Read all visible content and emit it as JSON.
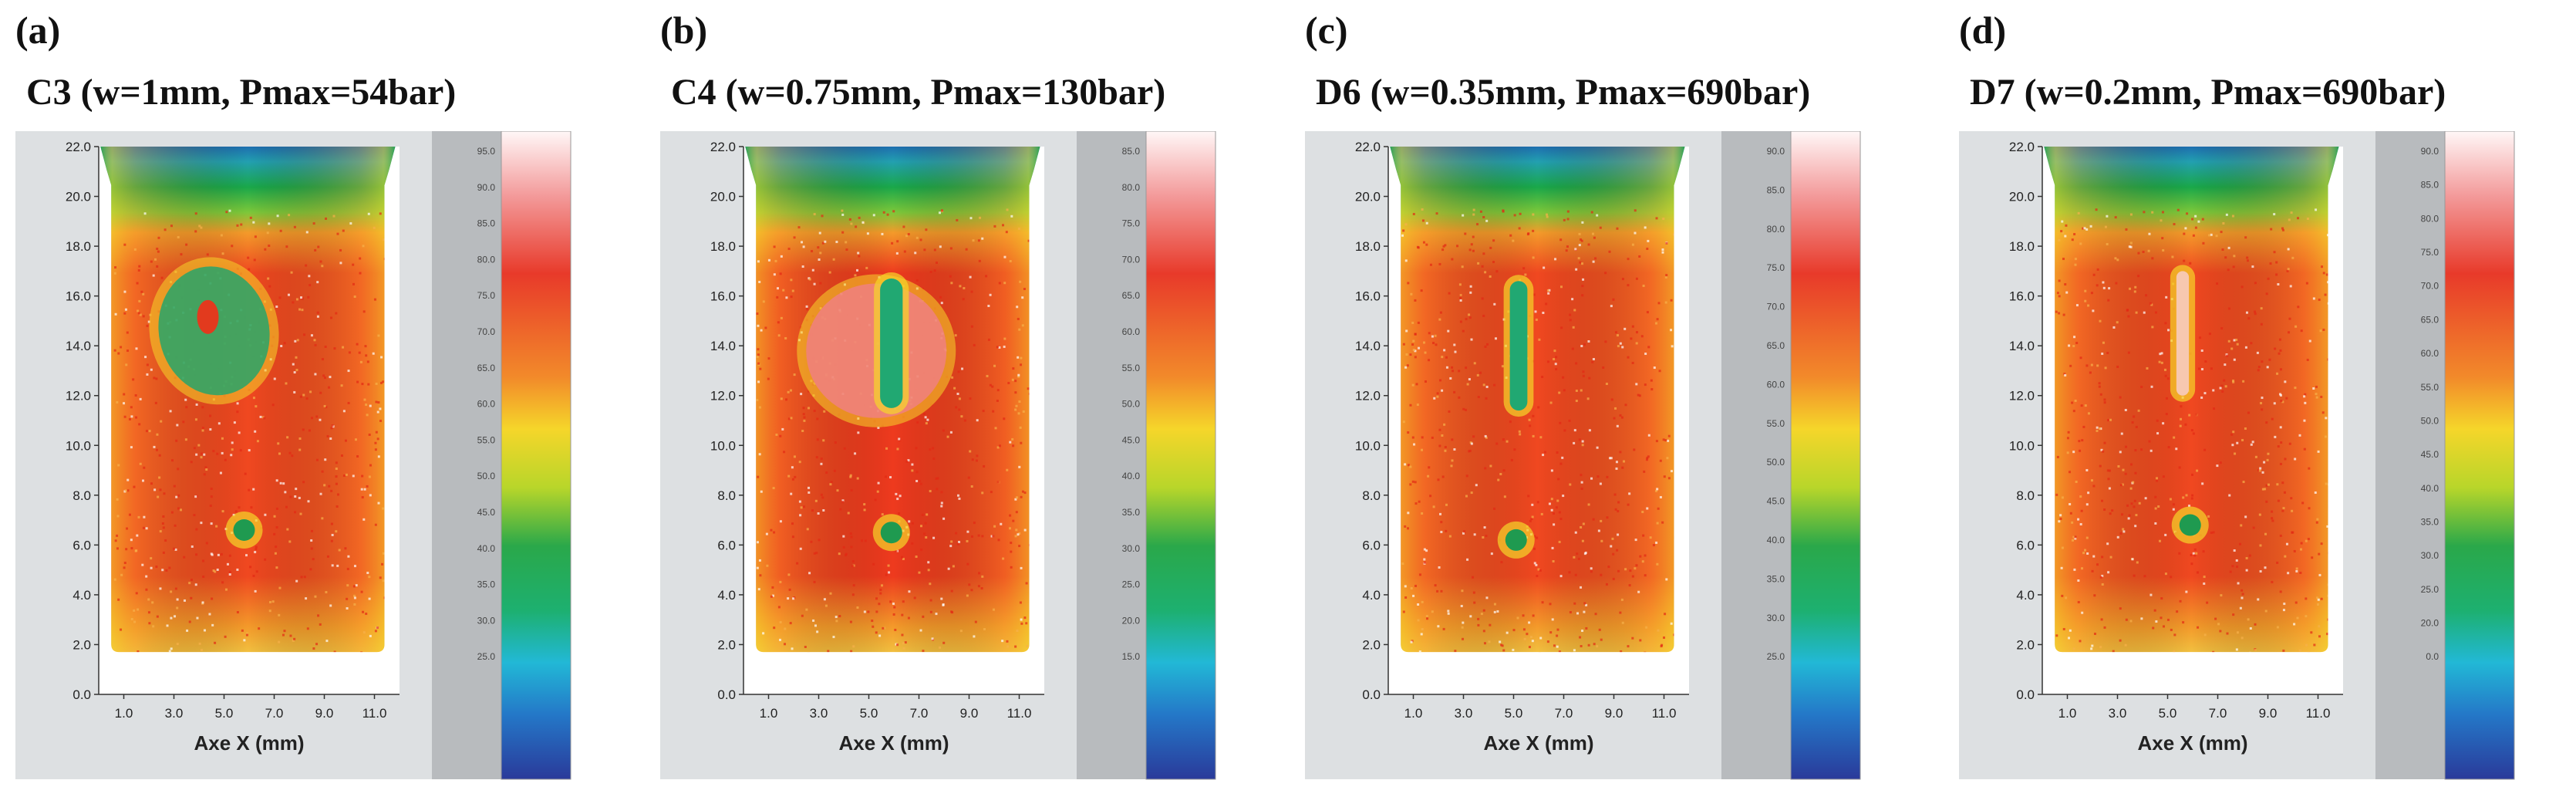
{
  "figure": {
    "panels": [
      {
        "letter": "(a)",
        "title": "C3 (w=1mm, Pmax=54bar)"
      },
      {
        "letter": "(b)",
        "title": "C4 (w=0.75mm, Pmax=130bar)"
      },
      {
        "letter": "(c)",
        "title": "D6 (w=0.35mm, Pmax=690bar)"
      },
      {
        "letter": "(d)",
        "title": "D7 (w=0.2mm, Pmax=690bar)"
      }
    ]
  },
  "chart_data": [
    {
      "type": "heatmap",
      "title": "C3 (w=1mm, Pmax=54bar)",
      "xlabel": "Axe X (mm)",
      "ylabel": "",
      "xlim": [
        0,
        12
      ],
      "ylim": [
        0,
        22
      ],
      "x_ticks": [
        "1.0",
        "3.0",
        "5.0",
        "7.0",
        "9.0",
        "11.0"
      ],
      "y_ticks": [
        "0.0",
        "2.0",
        "4.0",
        "6.0",
        "8.0",
        "10.0",
        "12.0",
        "14.0",
        "16.0",
        "18.0",
        "20.0",
        "22.0"
      ],
      "colorbar_ticks": [
        "95.0",
        "90.0",
        "85.0",
        "80.0",
        "75.0",
        "70.0",
        "65.0",
        "60.0",
        "55.0",
        "50.0",
        "45.0",
        "40.0",
        "35.0",
        "30.0",
        "25.0"
      ],
      "colors": {
        "hot": "#f04820",
        "mid": "#f49a2a",
        "cool": "#1aa84a",
        "edge": "#1e6fb0"
      }
    },
    {
      "type": "heatmap",
      "title": "C4 (w=0.75mm, Pmax=130bar)",
      "xlabel": "Axe X (mm)",
      "ylabel": "",
      "xlim": [
        0,
        12
      ],
      "ylim": [
        0,
        22
      ],
      "x_ticks": [
        "1.0",
        "3.0",
        "5.0",
        "7.0",
        "9.0",
        "11.0"
      ],
      "y_ticks": [
        "0.0",
        "2.0",
        "4.0",
        "6.0",
        "8.0",
        "10.0",
        "12.0",
        "14.0",
        "16.0",
        "18.0",
        "20.0",
        "22.0"
      ],
      "colorbar_ticks": [
        "85.0",
        "80.0",
        "75.0",
        "70.0",
        "65.0",
        "60.0",
        "55.0",
        "50.0",
        "45.0",
        "40.0",
        "35.0",
        "30.0",
        "25.0",
        "20.0",
        "15.0"
      ],
      "colors": {
        "hot": "#ee3a1e",
        "mid": "#f49a2a",
        "cool": "#1aa84a",
        "edge": "#1e6fb0"
      }
    },
    {
      "type": "heatmap",
      "title": "D6 (w=0.35mm, Pmax=690bar)",
      "xlabel": "Axe X (mm)",
      "ylabel": "",
      "xlim": [
        0,
        12
      ],
      "ylim": [
        0,
        22
      ],
      "x_ticks": [
        "1.0",
        "3.0",
        "5.0",
        "7.0",
        "9.0",
        "11.0"
      ],
      "y_ticks": [
        "0.0",
        "2.0",
        "4.0",
        "6.0",
        "8.0",
        "10.0",
        "12.0",
        "14.0",
        "16.0",
        "18.0",
        "20.0",
        "22.0"
      ],
      "colorbar_ticks": [
        "90.0",
        "85.0",
        "80.0",
        "75.0",
        "70.0",
        "65.0",
        "60.0",
        "55.0",
        "50.0",
        "45.0",
        "40.0",
        "35.0",
        "30.0",
        "25.0"
      ],
      "colors": {
        "hot": "#f04820",
        "mid": "#f49a2a",
        "cool": "#1aa84a",
        "edge": "#1e6fb0"
      }
    },
    {
      "type": "heatmap",
      "title": "D7 (w=0.2mm, Pmax=690bar)",
      "xlabel": "Axe X (mm)",
      "ylabel": "",
      "xlim": [
        0,
        12
      ],
      "ylim": [
        0,
        22
      ],
      "x_ticks": [
        "1.0",
        "3.0",
        "5.0",
        "7.0",
        "9.0",
        "11.0"
      ],
      "y_ticks": [
        "0.0",
        "2.0",
        "4.0",
        "6.0",
        "8.0",
        "10.0",
        "12.0",
        "14.0",
        "16.0",
        "18.0",
        "20.0",
        "22.0"
      ],
      "colorbar_ticks": [
        "90.0",
        "85.0",
        "80.0",
        "75.0",
        "70.0",
        "65.0",
        "60.0",
        "55.0",
        "50.0",
        "45.0",
        "40.0",
        "35.0",
        "30.0",
        "25.0",
        "20.0",
        "0.0"
      ],
      "colors": {
        "hot": "#f04820",
        "mid": "#f49a2a",
        "cool": "#1aa84a",
        "edge": "#1e6fb0"
      }
    }
  ]
}
